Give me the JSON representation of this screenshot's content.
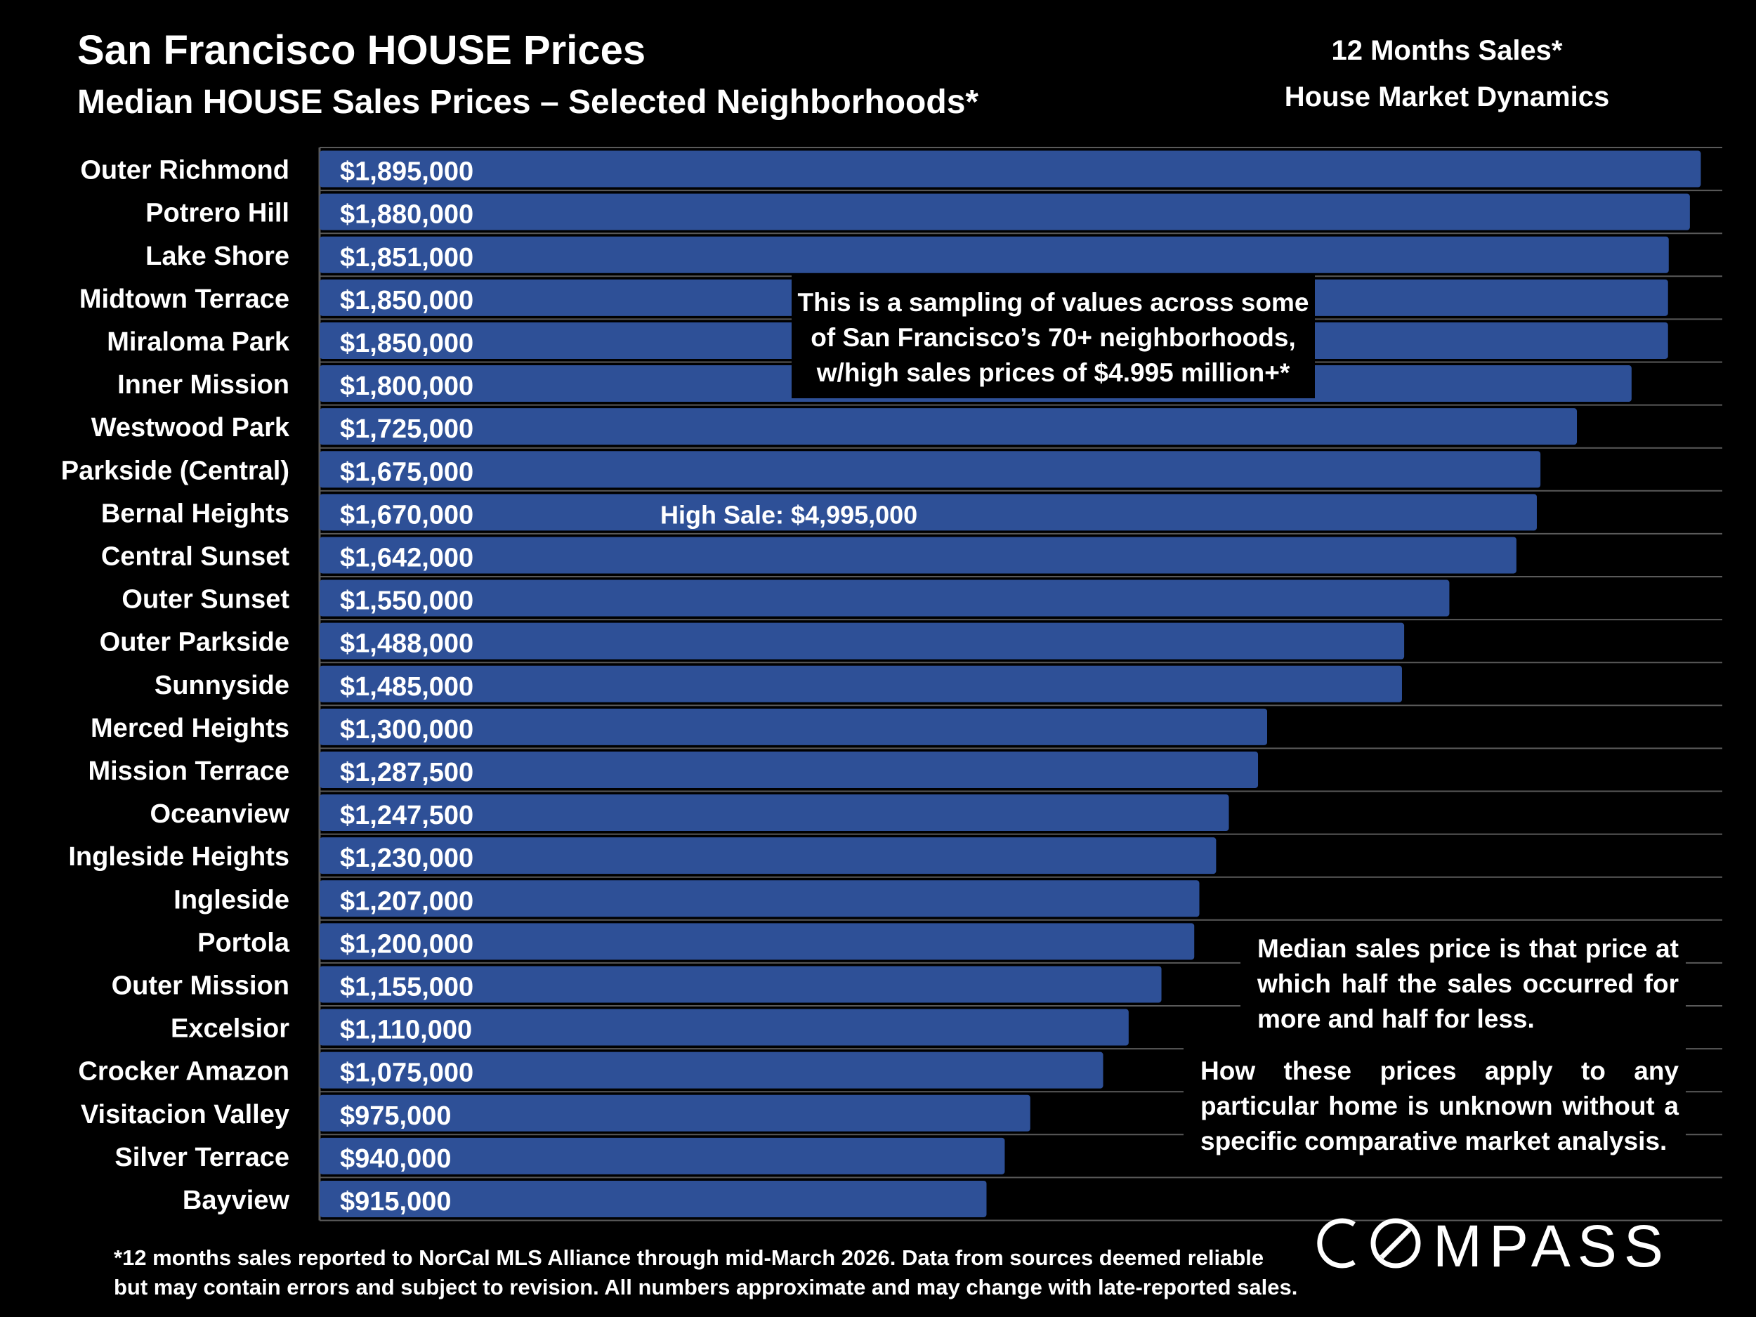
{
  "title": "San Francisco HOUSE Prices",
  "subtitle": "Median HOUSE Sales Prices – Selected Neighborhoods*",
  "right_header": {
    "line1": "12 Months Sales*",
    "line2": "House Market Dynamics"
  },
  "notes": {
    "sampling": [
      "This is a sampling of values across some",
      "of San Francisco’s 70+ neighborhoods,",
      "w/high sales prices of $4.995 million+*"
    ],
    "median": [
      "Median sales price is that price at",
      "which half the sales occurred for",
      "more and half for less."
    ],
    "apply": [
      "How these prices apply to any",
      "particular home is unknown without a",
      "specific comparative market analysis."
    ]
  },
  "footnote": [
    "*12 months sales reported to NorCal MLS Alliance through mid-March 2026. Data from sources deemed reliable",
    "but may contain errors and subject to revision. All numbers approximate and may change with late-reported sales."
  ],
  "logo": "COMPASS",
  "colors": {
    "background": "#000000",
    "bar": "#2e5097",
    "text": "#ffffff",
    "gridline": "#5a5a5a"
  },
  "chart_data": {
    "type": "bar",
    "orientation": "horizontal",
    "categories": [
      "Outer Richmond",
      "Potrero Hill",
      "Lake Shore",
      "Midtown Terrace",
      "Miraloma Park",
      "Inner Mission",
      "Westwood Park",
      "Parkside (Central)",
      "Bernal Heights",
      "Central Sunset",
      "Outer Sunset",
      "Outer Parkside",
      "Sunnyside",
      "Merced Heights",
      "Mission Terrace",
      "Oceanview",
      "Ingleside Heights",
      "Ingleside",
      "Portola",
      "Outer Mission",
      "Excelsior",
      "Crocker Amazon",
      "Visitacion Valley",
      "Silver Terrace",
      "Bayview"
    ],
    "values": [
      1895000,
      1880000,
      1851000,
      1850000,
      1850000,
      1800000,
      1725000,
      1675000,
      1670000,
      1642000,
      1550000,
      1488000,
      1485000,
      1300000,
      1287500,
      1247500,
      1230000,
      1207000,
      1200000,
      1155000,
      1110000,
      1075000,
      975000,
      940000,
      915000
    ],
    "labels": [
      "$1,895,000",
      "$1,880,000",
      "$1,851,000",
      "$1,850,000",
      "$1,850,000",
      "$1,800,000",
      "$1,725,000",
      "$1,675,000",
      "$1,670,000",
      "$1,642,000",
      "$1,550,000",
      "$1,488,000",
      "$1,485,000",
      "$1,300,000",
      "$1,287,500",
      "$1,247,500",
      "$1,230,000",
      "$1,207,000",
      "$1,200,000",
      "$1,155,000",
      "$1,110,000",
      "$1,075,000",
      "$975,000",
      "$940,000",
      "$915,000"
    ],
    "annotation": {
      "category": "Bernal Heights",
      "text": "High Sale:  $4,995,000"
    },
    "xlim": [
      0,
      1910000
    ],
    "grid": true
  }
}
